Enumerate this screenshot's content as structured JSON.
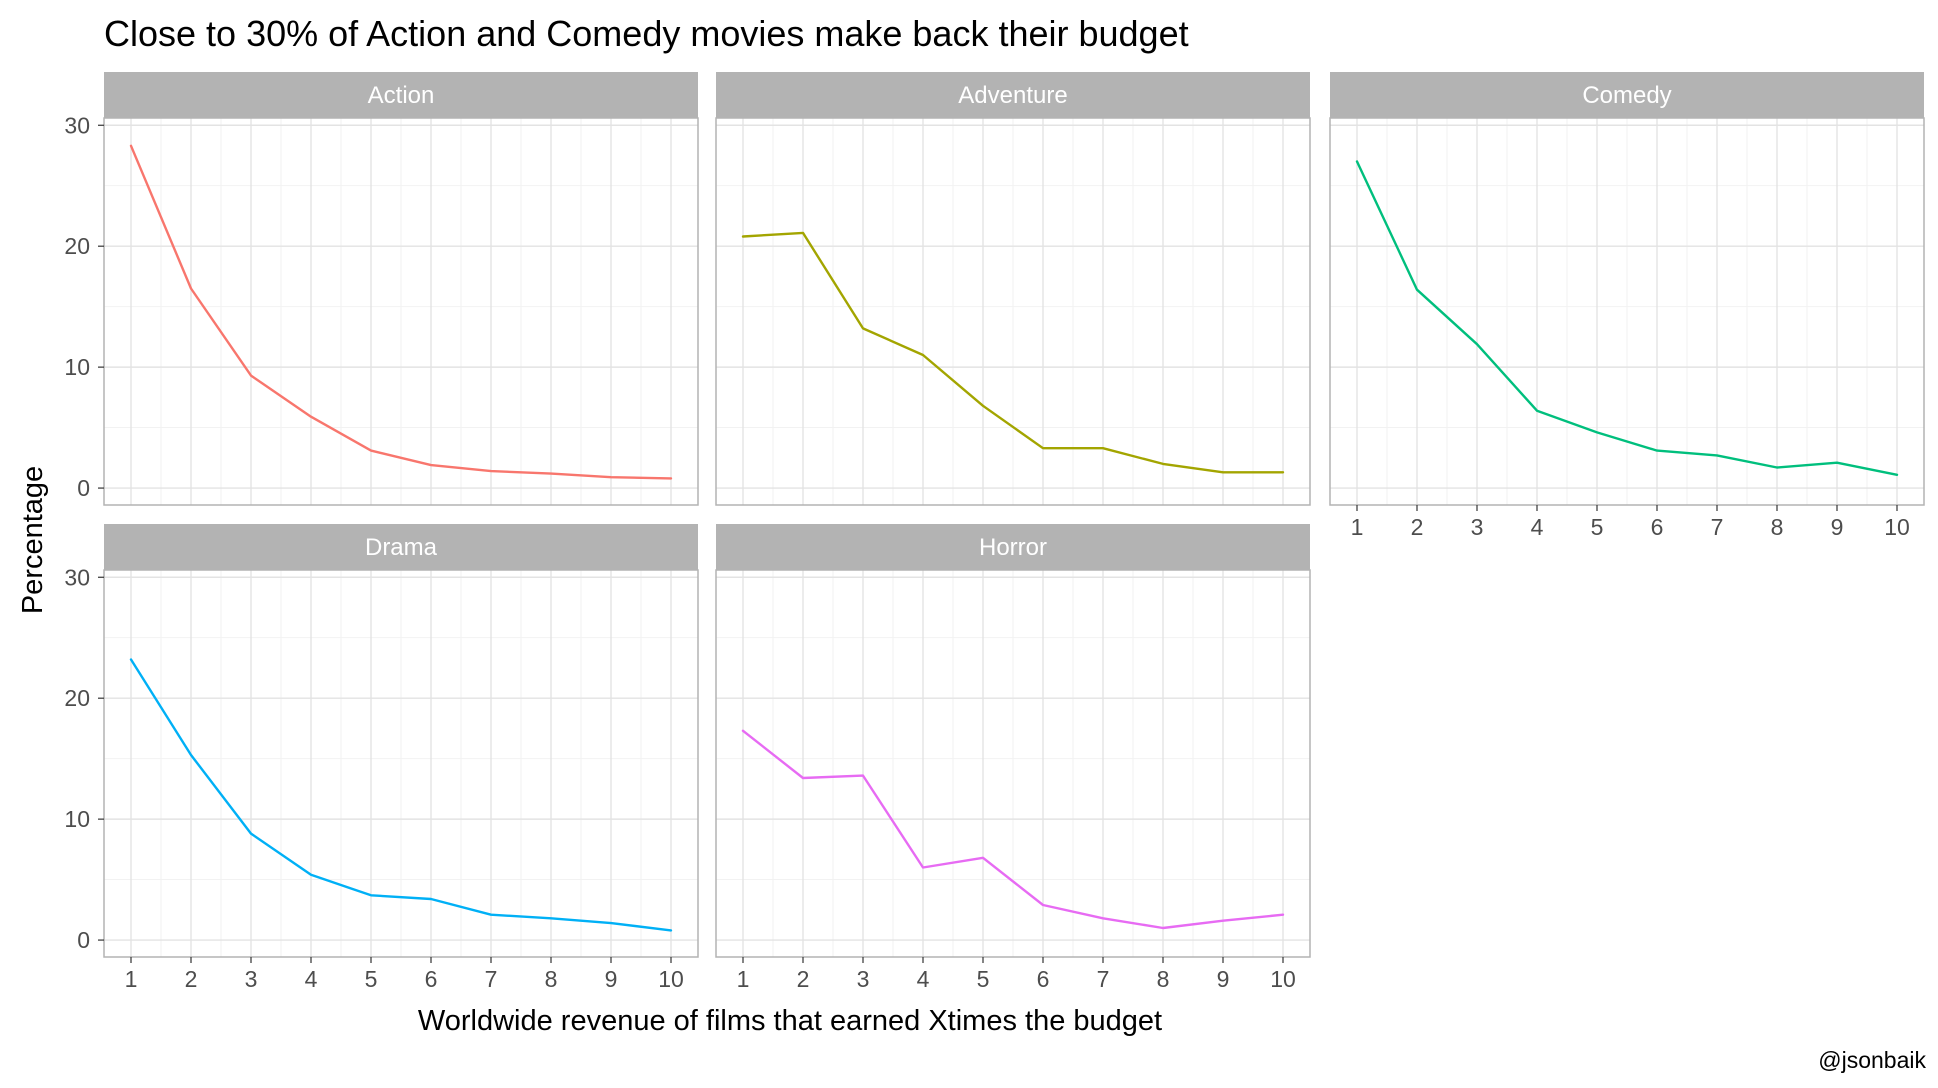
{
  "chart_data": {
    "type": "line",
    "title": "Close to 30% of Action and Comedy movies make back their budget",
    "xlabel": "Worldwide revenue of films that earned Xtimes the budget",
    "ylabel": "Percentage",
    "caption": "@jsonbaik",
    "x": [
      1,
      2,
      3,
      4,
      5,
      6,
      7,
      8,
      9,
      10
    ],
    "x_ticks": [
      "1",
      "2",
      "3",
      "4",
      "5",
      "6",
      "7",
      "8",
      "9",
      "10"
    ],
    "y_ticks": [
      "0",
      "10",
      "20",
      "30"
    ],
    "xlim": [
      0.55,
      10.45
    ],
    "ylim": [
      -1.4,
      30
    ],
    "grid": true,
    "facets": [
      {
        "name": "Action",
        "color": "#f8766d",
        "values": [
          28.3,
          16.5,
          9.3,
          5.9,
          3.1,
          1.9,
          1.4,
          1.2,
          0.9,
          0.8
        ]
      },
      {
        "name": "Adventure",
        "color": "#a3a500",
        "values": [
          20.8,
          21.1,
          13.2,
          11.0,
          6.8,
          3.3,
          3.3,
          2.0,
          1.3,
          1.3
        ]
      },
      {
        "name": "Comedy",
        "color": "#00bf7d",
        "values": [
          27.0,
          16.4,
          11.9,
          6.4,
          4.6,
          3.1,
          2.7,
          1.7,
          2.1,
          1.1
        ]
      },
      {
        "name": "Drama",
        "color": "#00b0f6",
        "values": [
          23.2,
          15.3,
          8.8,
          5.4,
          3.7,
          3.4,
          2.1,
          1.8,
          1.4,
          0.8
        ]
      },
      {
        "name": "Horror",
        "color": "#e76bf3",
        "values": [
          17.3,
          13.4,
          13.6,
          6.0,
          6.8,
          2.9,
          1.8,
          1.0,
          1.6,
          2.1
        ]
      }
    ]
  }
}
